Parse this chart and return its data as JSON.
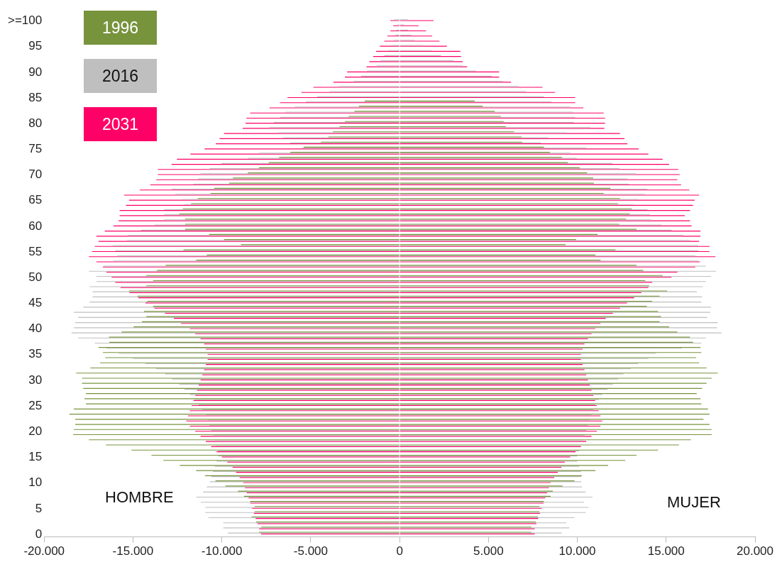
{
  "chart_data": {
    "type": "bar",
    "orientation": "horizontal",
    "legend": "top left",
    "grid": false,
    "annotations": [
      "HOMBRE",
      "MUJER"
    ],
    "categories": [
      ">=100",
      null,
      null,
      null,
      null,
      "95",
      null,
      null,
      null,
      null,
      "90",
      null,
      null,
      null,
      null,
      "85",
      null,
      null,
      null,
      null,
      "80",
      null,
      null,
      null,
      null,
      "75",
      null,
      null,
      null,
      null,
      "70",
      null,
      null,
      null,
      null,
      "65",
      null,
      null,
      null,
      null,
      "60",
      null,
      null,
      null,
      null,
      "55",
      null,
      null,
      null,
      null,
      "50",
      null,
      null,
      null,
      null,
      "45",
      null,
      null,
      null,
      null,
      "40",
      null,
      null,
      null,
      null,
      "35",
      null,
      null,
      null,
      null,
      "30",
      null,
      null,
      null,
      null,
      "25",
      null,
      null,
      null,
      null,
      "20",
      null,
      null,
      null,
      null,
      "15",
      null,
      null,
      null,
      null,
      "10",
      null,
      null,
      null,
      null,
      "5",
      null,
      null,
      null,
      null,
      "0"
    ],
    "xlim": [
      -20000,
      20000
    ],
    "xticks": [
      {
        "value": -20000,
        "label": "-20.000"
      },
      {
        "value": -15000,
        "label": "-15.000"
      },
      {
        "value": -10000,
        "label": "-10.000"
      },
      {
        "value": -5000,
        "label": "-5.000"
      },
      {
        "value": 0,
        "label": "0"
      },
      {
        "value": 5000,
        "label": "5.000"
      },
      {
        "value": 10000,
        "label": "10.000"
      },
      {
        "value": 15000,
        "label": "15.000"
      },
      {
        "value": 20000,
        "label": "20.000"
      }
    ],
    "series": [
      {
        "name": "1996",
        "color": "#77933c",
        "values": [
          null,
          null,
          null,
          null,
          null,
          null,
          null,
          null,
          null,
          null,
          null,
          null,
          null,
          null,
          null,
          null,
          -1960,
          -2290,
          -2540,
          -2870,
          -3080,
          -3380,
          -3760,
          -4010,
          -4430,
          -5390,
          -6150,
          -6780,
          -7360,
          -7910,
          -8540,
          -9380,
          -9590,
          -10430,
          -10640,
          -11360,
          -11730,
          -12200,
          -12400,
          -12070,
          -12070,
          -12070,
          -10720,
          -9880,
          -8920,
          -12160,
          -10850,
          -11440,
          -13160,
          -13660,
          -14250,
          -13870,
          -14250,
          -15220,
          -14750,
          -14200,
          -13870,
          -14380,
          -14250,
          -14500,
          -14970,
          -15640,
          -16350,
          -16330,
          -16940,
          -16690,
          -16560,
          -16850,
          -17400,
          -18200,
          -17870,
          -17870,
          -17800,
          -17650,
          -17730,
          -17650,
          -18330,
          -18580,
          -18250,
          -18250,
          -18330,
          -18370,
          -17480,
          -16520,
          -15090,
          -13960,
          -13290,
          -12370,
          -11450,
          -10950,
          -10360,
          -9800,
          -9090,
          -8750,
          -8410,
          -8160,
          -8160,
          -8330,
          -8080,
          -7780,
          -7910
        ]
      },
      {
        "name": "2016",
        "color": "#bfbfbf",
        "values": [
          -300,
          -120,
          -180,
          -250,
          -320,
          -480,
          -650,
          -860,
          -1070,
          -1280,
          -1830,
          -2160,
          -2580,
          -3420,
          -3930,
          -4640,
          -5270,
          -5900,
          -6440,
          -6730,
          -7070,
          -7360,
          -6860,
          -6570,
          -6150,
          -5480,
          -7910,
          -8540,
          -10010,
          -10680,
          -11190,
          -11350,
          -11610,
          -12830,
          -12620,
          -12240,
          -12110,
          -13240,
          -13240,
          -13240,
          -13790,
          -14550,
          -15300,
          -15340,
          -16150,
          -16000,
          -15880,
          -16100,
          -16650,
          -17480,
          -17060,
          -17060,
          -17440,
          -17270,
          -17270,
          -17440,
          -17800,
          -18330,
          -18080,
          -18250,
          -18330,
          -18460,
          -18080,
          -17150,
          -16500,
          -15800,
          -15000,
          -14300,
          -13700,
          -13200,
          -12800,
          -12400,
          -12100,
          -11800,
          -11500,
          -11300,
          -11100,
          -10900,
          -10800,
          -10700,
          -10600,
          -10500,
          -10400,
          -10300,
          -10200,
          -10200,
          -10300,
          -10400,
          -10500,
          -10600,
          -10680,
          -10850,
          -11060,
          -11440,
          -11180,
          -10930,
          -10930,
          -10760,
          -9920,
          -9920,
          -9670
        ]
      },
      {
        "name": "2031",
        "color": "#ff0066",
        "values": [
          -520,
          -360,
          -520,
          -690,
          -860,
          -1110,
          -1320,
          -1490,
          -1700,
          -1860,
          -2950,
          -3080,
          -3720,
          -4850,
          -5520,
          -6310,
          -6730,
          -7320,
          -8410,
          -8620,
          -8670,
          -8830,
          -9880,
          -10130,
          -10340,
          -10970,
          -11770,
          -12530,
          -12830,
          -13600,
          -13600,
          -13690,
          -14030,
          -14620,
          -15500,
          -15220,
          -15390,
          -15750,
          -15750,
          -15810,
          -16100,
          -16590,
          -17060,
          -16940,
          -17150,
          -17310,
          -17480,
          -17060,
          -16700,
          -16500,
          -16200,
          -16000,
          -15700,
          -15200,
          -14700,
          -14300,
          -13800,
          -13200,
          -12700,
          -12300,
          -11800,
          -11500,
          -11200,
          -11000,
          -10900,
          -10800,
          -10800,
          -10900,
          -11000,
          -11100,
          -11200,
          -11300,
          -11400,
          -11500,
          -11600,
          -11700,
          -11800,
          -11900,
          -12000,
          -11800,
          -11500,
          -11200,
          -10900,
          -10600,
          -10300,
          -10000,
          -9700,
          -9400,
          -9200,
          -9000,
          -8800,
          -8700,
          -8600,
          -8500,
          -8400,
          -8300,
          -8200,
          -8100,
          -8000,
          -7900,
          -7800
        ]
      },
      {
        "color": "#77933c",
        "values": [
          null,
          null,
          null,
          null,
          null,
          null,
          null,
          null,
          null,
          null,
          null,
          null,
          null,
          null,
          null,
          null,
          4220,
          4680,
          5350,
          5690,
          5860,
          5980,
          6440,
          6860,
          6900,
          8120,
          8460,
          9130,
          9470,
          10130,
          10550,
          10890,
          10930,
          11860,
          11480,
          12400,
          12280,
          13070,
          12950,
          12740,
          12360,
          13330,
          11140,
          9930,
          9340,
          12150,
          11020,
          11310,
          13330,
          13710,
          14800,
          13820,
          14040,
          15050,
          14630,
          14210,
          13910,
          14540,
          14710,
          14630,
          15170,
          15630,
          16340,
          16510,
          16930,
          16980,
          16680,
          16850,
          17270,
          17900,
          17560,
          17270,
          17020,
          16720,
          16930,
          16980,
          17350,
          17440,
          17100,
          17440,
          17560,
          17560,
          16390,
          15720,
          14540,
          13330,
          12700,
          11730,
          11020,
          10260,
          9840,
          9170,
          8620,
          8500,
          8120,
          7870,
          7870,
          7790,
          7660,
          7410,
          7410
        ]
      },
      {
        "color": "#bfbfbf",
        "values": [
          480,
          270,
          480,
          660,
          860,
          1320,
          1830,
          2330,
          3040,
          3550,
          4300,
          5180,
          5810,
          6690,
          7110,
          8120,
          8540,
          9590,
          9760,
          9880,
          9800,
          10720,
          9380,
          8370,
          7950,
          10510,
          9630,
          9970,
          11980,
          12360,
          13290,
          12820,
          12900,
          13950,
          13790,
          13410,
          13160,
          13950,
          14080,
          14160,
          14750,
          15300,
          15970,
          16340,
          16810,
          16810,
          16640,
          16800,
          17230,
          17810,
          17520,
          17230,
          17060,
          16720,
          17020,
          16980,
          17520,
          17480,
          17310,
          17900,
          17860,
          18110,
          17230,
          16980,
          15880,
          14420,
          14000,
          13410,
          13000,
          12600,
          12300,
          12000,
          11700,
          11400,
          11200,
          11000,
          10900,
          10800,
          10700,
          10600,
          10500,
          10400,
          10300,
          10200,
          10100,
          10000,
          10000,
          10100,
          10200,
          10200,
          10220,
          10260,
          10470,
          10850,
          10380,
          10640,
          10470,
          9840,
          9380,
          9550,
          9130
        ]
      },
      {
        "color": "#ff0066",
        "values": [
          1910,
          1070,
          1490,
          1830,
          2240,
          2660,
          3420,
          3460,
          3550,
          3800,
          5600,
          5600,
          6270,
          8040,
          8750,
          9880,
          9880,
          10340,
          11480,
          11560,
          11560,
          11520,
          12400,
          12650,
          12820,
          13450,
          14000,
          14800,
          15170,
          15680,
          15760,
          15630,
          15840,
          16300,
          16850,
          16600,
          16510,
          16340,
          16050,
          16340,
          16430,
          16930,
          16930,
          16850,
          17440,
          17440,
          17770,
          16900,
          16640,
          15630,
          15300,
          14210,
          14000,
          13600,
          13200,
          12800,
          12400,
          12000,
          11600,
          11300,
          11000,
          10800,
          10600,
          10400,
          10300,
          10200,
          10200,
          10300,
          10400,
          10500,
          10600,
          10700,
          10800,
          10900,
          11000,
          11100,
          11200,
          11300,
          11400,
          11300,
          11100,
          10800,
          10500,
          10200,
          9900,
          9600,
          9300,
          9100,
          8900,
          8700,
          8500,
          8400,
          8300,
          8200,
          8100,
          8000,
          7900,
          7800,
          7700,
          7600,
          7600
        ]
      }
    ]
  }
}
